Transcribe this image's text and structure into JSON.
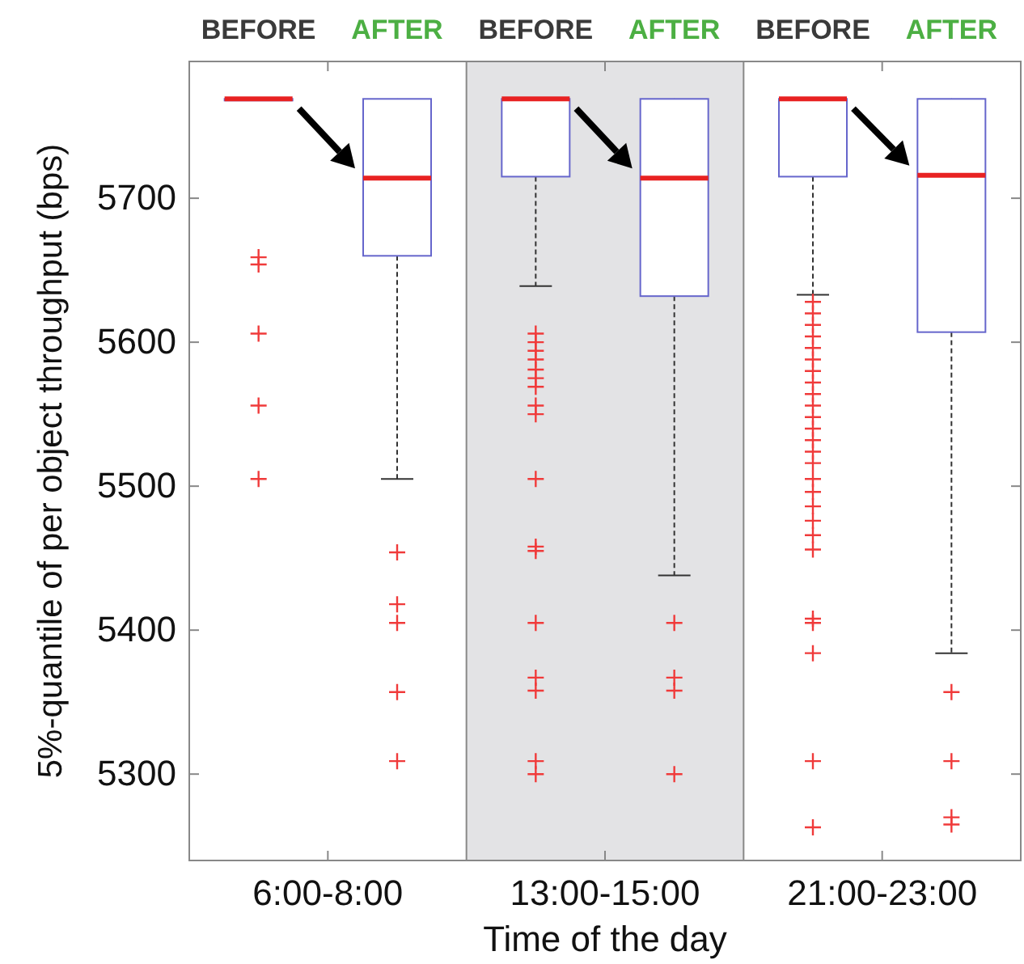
{
  "chart_data": {
    "type": "box",
    "xlabel": "Time of the day",
    "ylabel": "5%-quantile of per object throughput (bps)",
    "categories": [
      "6:00-8:00",
      "13:00-15:00",
      "21:00-23:00"
    ],
    "ylim": [
      5240,
      5795
    ],
    "yticks": [
      5300,
      5400,
      5500,
      5600,
      5700
    ],
    "bands": [
      {
        "axis": "x",
        "from": "13:00-15:00",
        "to": "13:00-15:00",
        "color": "#e3e3e5"
      }
    ],
    "series": [
      {
        "name": "BEFORE",
        "color": "#6666cc",
        "boxes": [
          {
            "low": 5769,
            "q1": 5769,
            "median": 5769,
            "q3": 5769,
            "high": 5769,
            "outliers": [
              5659,
              5654,
              5606,
              5556,
              5505
            ]
          },
          {
            "low": 5639,
            "q1": 5715,
            "median": 5769,
            "q3": 5769,
            "high": 5769,
            "outliers": [
              5606,
              5600,
              5594,
              5588,
              5581,
              5575,
              5569,
              5556,
              5550,
              5505,
              5458,
              5455,
              5405,
              5367,
              5358,
              5309,
              5300
            ]
          },
          {
            "low": 5633,
            "q1": 5715,
            "median": 5769,
            "q3": 5769,
            "high": 5769,
            "outliers": [
              5628,
              5620,
              5612,
              5604,
              5596,
              5588,
              5580,
              5572,
              5564,
              5556,
              5548,
              5540,
              5532,
              5524,
              5516,
              5505,
              5496,
              5486,
              5476,
              5466,
              5456,
              5408,
              5405,
              5384,
              5309,
              5263
            ]
          }
        ]
      },
      {
        "name": "AFTER",
        "color": "#6666cc",
        "boxes": [
          {
            "low": 5505,
            "q1": 5660,
            "median": 5714,
            "q3": 5769,
            "high": 5769,
            "outliers": [
              5454,
              5418,
              5405,
              5357,
              5309
            ]
          },
          {
            "low": 5438,
            "q1": 5632,
            "median": 5714,
            "q3": 5769,
            "high": 5769,
            "outliers": [
              5405,
              5367,
              5358,
              5300
            ]
          },
          {
            "low": 5384,
            "q1": 5607,
            "median": 5716,
            "q3": 5769,
            "high": 5769,
            "outliers": [
              5357,
              5309,
              5270,
              5265
            ]
          }
        ]
      }
    ]
  }
}
